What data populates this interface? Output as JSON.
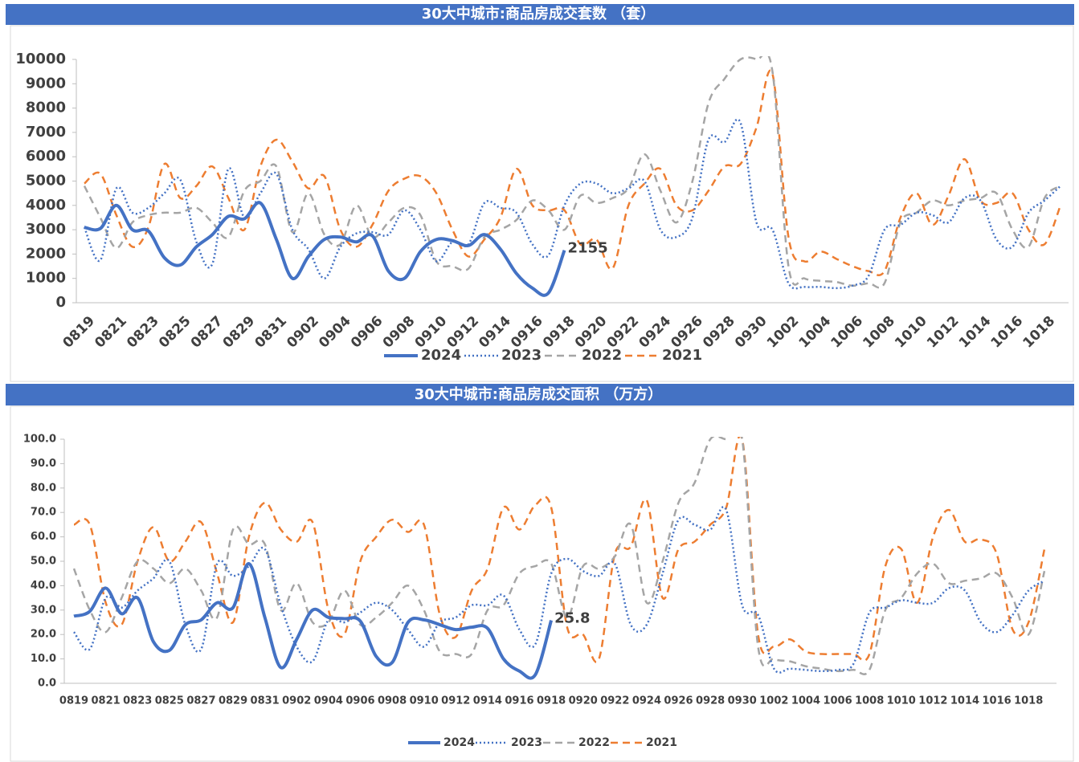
{
  "chart_data": [
    {
      "type": "line",
      "title": "30大中城市:商品房成交套数 （套）",
      "categories": [
        "0819",
        null,
        "0821",
        null,
        "0823",
        null,
        "0825",
        null,
        "0827",
        null,
        "0829",
        null,
        "0831",
        null,
        "0902",
        null,
        "0904",
        null,
        "0906",
        null,
        "0908",
        null,
        "0910",
        null,
        "0912",
        null,
        "0914",
        null,
        "0916",
        null,
        "0918",
        null,
        "0920",
        null,
        "0922",
        null,
        "0924",
        null,
        "0926",
        null,
        "0928",
        null,
        "0930",
        null,
        "1002",
        null,
        "1004",
        null,
        "1006",
        null,
        "1008",
        null,
        "1010",
        null,
        "1012",
        null,
        "1014",
        null,
        "1016",
        null,
        "1018",
        null
      ],
      "ylim": [
        0,
        10000
      ],
      "yticks": [
        0,
        1000,
        2000,
        3000,
        4000,
        5000,
        6000,
        7000,
        8000,
        9000,
        10000
      ],
      "grid": false,
      "legend": "bottom",
      "series": [
        {
          "name": "2024",
          "color": "#4472c4",
          "style": "solid",
          "data_label_index": 30,
          "values": [
            3100,
            3050,
            4000,
            3000,
            2950,
            1850,
            1550,
            2300,
            2800,
            3550,
            3450,
            4100,
            2600,
            1000,
            1900,
            2600,
            2700,
            2500,
            2750,
            1300,
            1000,
            2100,
            2600,
            2550,
            2350,
            2800,
            2200,
            1200,
            600,
            400,
            2155,
            null,
            null,
            null,
            null,
            null,
            null,
            null,
            null,
            null,
            null,
            null,
            null,
            null,
            null,
            null,
            null,
            null,
            null,
            null,
            null,
            null,
            null,
            null,
            null,
            null,
            null,
            null,
            null,
            null,
            null,
            null
          ]
        },
        {
          "name": "2023",
          "color": "#4472c4",
          "style": "dotted",
          "values": [
            3100,
            1750,
            4700,
            3700,
            3900,
            4500,
            5050,
            2500,
            1600,
            5500,
            3500,
            4500,
            5300,
            3000,
            2200,
            1000,
            2300,
            2850,
            2900,
            2800,
            3800,
            3000,
            1700,
            2500,
            2400,
            4100,
            3900,
            3700,
            2400,
            1950,
            4000,
            4900,
            4900,
            4500,
            4700,
            5000,
            3000,
            2700,
            3500,
            6700,
            6600,
            7400,
            3300,
            3000,
            800,
            650,
            650,
            600,
            700,
            1100,
            3000,
            3200,
            3700,
            3600,
            3300,
            4300,
            4200,
            2600,
            2300,
            3700,
            4200,
            4800
          ]
        },
        {
          "name": "2022",
          "color": "#a5a5a5",
          "style": "dashed",
          "values": [
            4800,
            3500,
            2250,
            3300,
            3600,
            3700,
            3700,
            3900,
            3300,
            2700,
            4600,
            5000,
            5600,
            2900,
            4500,
            2800,
            2400,
            4000,
            2700,
            3300,
            3900,
            3600,
            1700,
            1500,
            1400,
            2700,
            3000,
            3400,
            4200,
            3800,
            3000,
            4400,
            4100,
            4300,
            4700,
            6100,
            4600,
            3300,
            5000,
            8200,
            9200,
            10000,
            10000,
            9500,
            1500,
            1000,
            900,
            850,
            700,
            800,
            800,
            3300,
            3700,
            4200,
            4000,
            4200,
            4300,
            4500,
            3000,
            2300,
            4300,
            4800
          ]
        },
        {
          "name": "2021",
          "color": "#ed7d31",
          "style": "dashed",
          "values": [
            4900,
            5300,
            3600,
            2300,
            3100,
            5700,
            4300,
            4800,
            5600,
            4300,
            3000,
            5600,
            6700,
            5800,
            4700,
            5200,
            3000,
            2300,
            3200,
            4600,
            5100,
            5200,
            4500,
            3000,
            1900,
            2600,
            3500,
            5500,
            4000,
            3800,
            3800,
            2400,
            2600,
            1400,
            4000,
            4900,
            5500,
            4000,
            3800,
            4600,
            5600,
            5700,
            7200,
            9400,
            2700,
            1700,
            2100,
            1800,
            1500,
            1300,
            1300,
            3500,
            4500,
            3200,
            4400,
            5900,
            4200,
            4100,
            4500,
            3000,
            2400,
            4000
          ]
        }
      ]
    },
    {
      "type": "line",
      "title": "30大中城市:商品房成交面积 （万方）",
      "categories": [
        "0819",
        null,
        "0821",
        null,
        "0823",
        null,
        "0825",
        null,
        "0827",
        null,
        "0829",
        null,
        "0831",
        null,
        "0902",
        null,
        "0904",
        null,
        "0906",
        null,
        "0908",
        null,
        "0910",
        null,
        "0912",
        null,
        "0914",
        null,
        "0916",
        null,
        "0918",
        null,
        "0920",
        null,
        "0922",
        null,
        "0924",
        null,
        "0926",
        null,
        "0928",
        null,
        "0930",
        null,
        "1002",
        null,
        "1004",
        null,
        "1006",
        null,
        "1008",
        null,
        "1010",
        null,
        "1012",
        null,
        "1014",
        null,
        "1016",
        null,
        "1018",
        null
      ],
      "ylim": [
        0,
        100
      ],
      "yticks": [
        {
          "value": 0,
          "label": "0.0"
        },
        {
          "value": 10,
          "label": "10.0"
        },
        {
          "value": 20,
          "label": "20.0"
        },
        {
          "value": 30,
          "label": "30.0"
        },
        {
          "value": 40,
          "label": "40.0"
        },
        {
          "value": 50,
          "label": "50.0"
        },
        {
          "value": 60,
          "label": "60.0"
        },
        {
          "value": 70,
          "label": "70.0"
        },
        {
          "value": 80,
          "label": "80.0"
        },
        {
          "value": 90,
          "label": "90.0"
        },
        {
          "value": 100,
          "label": "100.0"
        }
      ],
      "grid": false,
      "legend": "bottom",
      "series": [
        {
          "name": "2024",
          "color": "#4472c4",
          "style": "solid",
          "data_label_index": 30,
          "values": [
            27.5,
            29.5,
            39,
            28.5,
            35,
            17,
            13.5,
            24,
            26,
            33,
            31,
            49,
            27,
            6.5,
            18,
            30,
            27,
            26.5,
            25.5,
            11,
            8.5,
            25,
            26,
            24,
            22,
            23,
            22.5,
            10,
            5,
            3.5,
            25.8,
            null,
            null,
            null,
            null,
            null,
            null,
            null,
            null,
            null,
            null,
            null,
            null,
            null,
            null,
            null,
            null,
            null,
            null,
            null,
            null,
            null,
            null,
            null,
            null,
            null,
            null,
            null,
            null,
            null,
            null,
            null
          ]
        },
        {
          "name": "2023",
          "color": "#4472c4",
          "style": "dotted",
          "values": [
            21,
            14,
            35,
            31,
            38,
            43,
            50,
            24,
            14,
            49,
            44,
            48,
            55,
            32,
            15,
            9,
            26,
            25,
            29,
            33,
            30,
            22,
            15,
            25,
            27,
            32,
            32,
            36,
            22,
            16,
            45,
            51,
            46,
            44,
            49,
            24,
            24,
            45,
            67,
            65,
            63,
            71,
            32,
            28,
            6,
            6,
            5.5,
            5,
            5.5,
            8,
            29,
            31,
            34,
            33,
            33,
            39,
            38,
            25,
            21,
            28,
            38,
            42
          ]
        },
        {
          "name": "2022",
          "color": "#a5a5a5",
          "style": "dashed",
          "values": [
            47,
            30,
            21,
            35,
            50,
            47,
            41,
            47,
            38,
            27,
            63,
            57,
            57,
            30,
            41,
            25,
            25,
            38,
            24,
            27,
            33,
            40,
            30,
            13,
            12,
            12,
            30,
            32,
            45,
            48,
            49,
            27,
            48,
            47,
            52,
            65,
            33,
            50,
            74,
            82,
            100,
            100,
            100,
            15,
            10,
            9,
            7,
            6,
            5,
            5.5,
            5.5,
            30,
            35,
            45,
            49,
            41,
            42,
            43,
            45,
            35,
            20,
            46
          ]
        },
        {
          "name": "2021",
          "color": "#ed7d31",
          "style": "dashed",
          "values": [
            65,
            65,
            33,
            24,
            50,
            64,
            50,
            58,
            66,
            45,
            25,
            60,
            74,
            63,
            58,
            66,
            30,
            20,
            50,
            60,
            67,
            62,
            65,
            28,
            19,
            38,
            47,
            72,
            63,
            73,
            72,
            23,
            20,
            10,
            53,
            56,
            75,
            35,
            55,
            58,
            65,
            72,
            100,
            20,
            15,
            18,
            13,
            12,
            12,
            12,
            12,
            48,
            55,
            33,
            60,
            71,
            58,
            59,
            53,
            22,
            25,
            55
          ]
        }
      ]
    }
  ]
}
